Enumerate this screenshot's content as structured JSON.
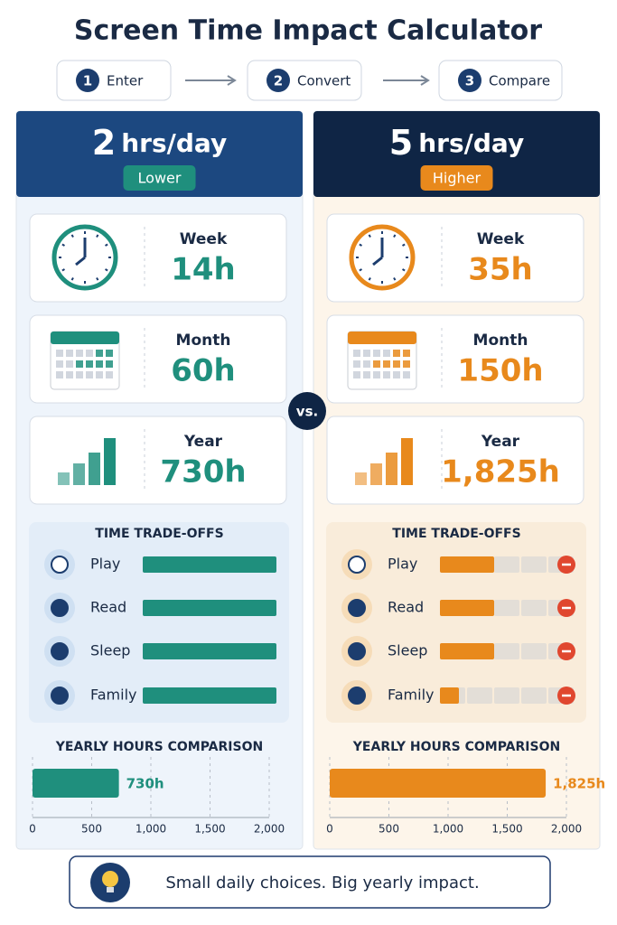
{
  "title": "Screen Time Impact Calculator",
  "steps": [
    {
      "number": "1",
      "label": "Enter"
    },
    {
      "number": "2",
      "label": "Convert"
    },
    {
      "number": "3",
      "label": "Compare"
    }
  ],
  "vs": "vs.",
  "panels": [
    {
      "hours": "2",
      "unit": "hrs/day",
      "badge": "Lower",
      "color": "#1f8f7d",
      "header_color": "#1c4880",
      "body_color": "#eef4fb",
      "stats": [
        {
          "label": "Week",
          "value": "14h"
        },
        {
          "label": "Month",
          "value": "60h"
        },
        {
          "label": "Year",
          "value": "730h"
        }
      ],
      "tradeoffs": {
        "title": "TIME TRADE-OFFS",
        "segments": 5,
        "show_minus": false,
        "items": [
          {
            "label": "Play",
            "value": 5
          },
          {
            "label": "Read",
            "value": 5
          },
          {
            "label": "Sleep",
            "value": 5
          },
          {
            "label": "Family",
            "value": 5
          }
        ]
      },
      "yearly": {
        "title": "YEARLY HOURS COMPARISON",
        "value": 730,
        "value_label": "730h",
        "xlim": [
          0,
          2000
        ],
        "xticks": [
          0,
          500,
          {
            "value": 1000,
            "label": "1,000"
          },
          {
            "value": 1500,
            "label": "1,500"
          },
          {
            "value": 2000,
            "label": "2,000"
          }
        ]
      }
    },
    {
      "hours": "5",
      "unit": "hrs/day",
      "badge": "Higher",
      "color": "#e8891c",
      "header_color": "#0f2545",
      "body_color": "#fdf5ea",
      "stats": [
        {
          "label": "Week",
          "value": "35h"
        },
        {
          "label": "Month",
          "value": "150h"
        },
        {
          "label": "Year",
          "value": "1,825h"
        }
      ],
      "tradeoffs": {
        "title": "TIME TRADE-OFFS",
        "segments": 5,
        "show_minus": true,
        "items": [
          {
            "label": "Play",
            "value": 2
          },
          {
            "label": "Read",
            "value": 2
          },
          {
            "label": "Sleep",
            "value": 2
          },
          {
            "label": "Family",
            "value": 0.7
          }
        ]
      },
      "yearly": {
        "title": "YEARLY HOURS COMPARISON",
        "value": 1825,
        "value_label": "1,825h",
        "xlim": [
          0,
          2000
        ],
        "xticks": [
          0,
          500,
          {
            "value": 1000,
            "label": "1,000"
          },
          {
            "value": 1500,
            "label": "1,500"
          },
          {
            "value": 2000,
            "label": "2,000"
          }
        ]
      }
    }
  ],
  "footer": "Small daily choices. Big yearly impact."
}
